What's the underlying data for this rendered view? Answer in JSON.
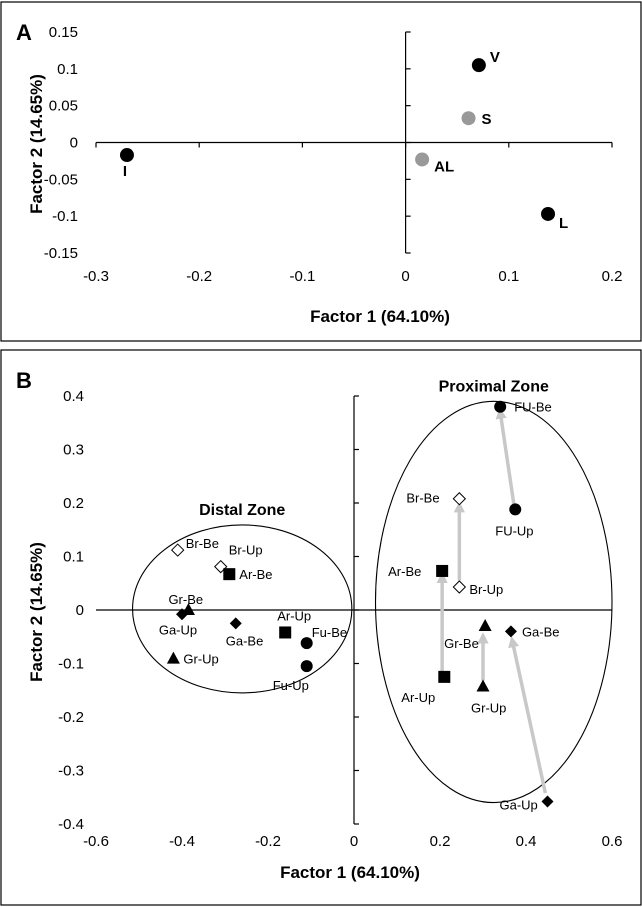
{
  "chart_data": [
    {
      "type": "scatter",
      "panel_label": "A",
      "xlabel": "Factor 1 (64.10%)",
      "ylabel": "Factor 2 (14.65%)",
      "xlim": [
        -0.3,
        0.2
      ],
      "ylim": [
        -0.15,
        0.15
      ],
      "xticks": [
        "-0.3",
        "-0.2",
        "-0.1",
        "0",
        "0.1",
        "0.2"
      ],
      "yticks": [
        "0.15",
        "0.1",
        "0.05",
        "0",
        "-0.05",
        "-0.1",
        "-0.15"
      ],
      "points": [
        {
          "label": "I",
          "x": -0.27,
          "y": -0.017,
          "color": "#000000"
        },
        {
          "label": "V",
          "x": 0.071,
          "y": 0.105,
          "color": "#000000"
        },
        {
          "label": "S",
          "x": 0.061,
          "y": 0.033,
          "color": "#999999"
        },
        {
          "label": "AL",
          "x": 0.016,
          "y": -0.023,
          "color": "#999999"
        },
        {
          "label": "L",
          "x": 0.138,
          "y": -0.097,
          "color": "#000000"
        }
      ]
    },
    {
      "type": "scatter",
      "panel_label": "B",
      "xlabel": "Factor 1 (64.10%)",
      "ylabel": "Factor 2 (14.65%)",
      "xlim": [
        -0.6,
        0.6
      ],
      "ylim": [
        -0.4,
        0.4
      ],
      "xticks": [
        "-0.6",
        "-0.4",
        "-0.2",
        "0",
        "0.2",
        "0.4",
        "0.6"
      ],
      "yticks": [
        "0.4",
        "0.3",
        "0.2",
        "0.1",
        "0",
        "-0.1",
        "-0.2",
        "-0.3",
        "-0.4"
      ],
      "zones": [
        {
          "name": "Distal Zone",
          "cx": -0.26,
          "cy": 0.002,
          "rx": 0.255,
          "ry": 0.157
        },
        {
          "name": "Proximal Zone",
          "cx": 0.325,
          "cy": 0.015,
          "rx": 0.275,
          "ry": 0.375
        }
      ],
      "points": [
        {
          "label": "Br-Be",
          "x": -0.41,
          "y": 0.112,
          "marker": "diamond-open"
        },
        {
          "label": "Br-Up",
          "x": -0.31,
          "y": 0.081,
          "marker": "diamond-open"
        },
        {
          "label": "Ar-Be",
          "x": -0.29,
          "y": 0.067,
          "marker": "square"
        },
        {
          "label": "Gr-Be",
          "x": -0.385,
          "y": 0.0,
          "marker": "triangle"
        },
        {
          "label": "Ga-Up",
          "x": -0.4,
          "y": -0.008,
          "marker": "diamond"
        },
        {
          "label": "Gr-Up",
          "x": -0.42,
          "y": -0.091,
          "marker": "triangle"
        },
        {
          "label": "Ga-Be",
          "x": -0.275,
          "y": -0.025,
          "marker": "diamond"
        },
        {
          "label": "Ar-Up",
          "x": -0.16,
          "y": -0.042,
          "marker": "square"
        },
        {
          "label": "Fu-Be",
          "x": -0.11,
          "y": -0.062,
          "marker": "circle"
        },
        {
          "label": "Fu-Up",
          "x": -0.11,
          "y": -0.105,
          "marker": "circle"
        },
        {
          "label": "FU-Be",
          "x": 0.34,
          "y": 0.38,
          "marker": "circle"
        },
        {
          "label": "FU-Up",
          "x": 0.375,
          "y": 0.188,
          "marker": "circle"
        },
        {
          "label": "Br-Be",
          "x": 0.245,
          "y": 0.208,
          "marker": "diamond-open"
        },
        {
          "label": "Ar-Be",
          "x": 0.205,
          "y": 0.073,
          "marker": "square"
        },
        {
          "label": "Br-Up",
          "x": 0.245,
          "y": 0.043,
          "marker": "diamond-open"
        },
        {
          "label": "Gr-Be",
          "x": 0.305,
          "y": -0.03,
          "marker": "triangle"
        },
        {
          "label": "Ga-Be",
          "x": 0.365,
          "y": -0.04,
          "marker": "diamond"
        },
        {
          "label": "Ar-Up",
          "x": 0.21,
          "y": -0.125,
          "marker": "square"
        },
        {
          "label": "Gr-Up",
          "x": 0.3,
          "y": -0.143,
          "marker": "triangle"
        },
        {
          "label": "Ga-Up",
          "x": 0.45,
          "y": -0.358,
          "marker": "diamond"
        }
      ],
      "arrows": [
        {
          "from": [
            0.375,
            0.18
          ],
          "to": [
            0.34,
            0.37
          ]
        },
        {
          "from": [
            0.245,
            0.055
          ],
          "to": [
            0.245,
            0.195
          ]
        },
        {
          "from": [
            0.205,
            -0.115
          ],
          "to": [
            0.205,
            0.063
          ]
        },
        {
          "from": [
            0.3,
            -0.132
          ],
          "to": [
            0.3,
            -0.05
          ]
        },
        {
          "from": [
            0.445,
            -0.342
          ],
          "to": [
            0.368,
            -0.057
          ]
        }
      ]
    }
  ]
}
